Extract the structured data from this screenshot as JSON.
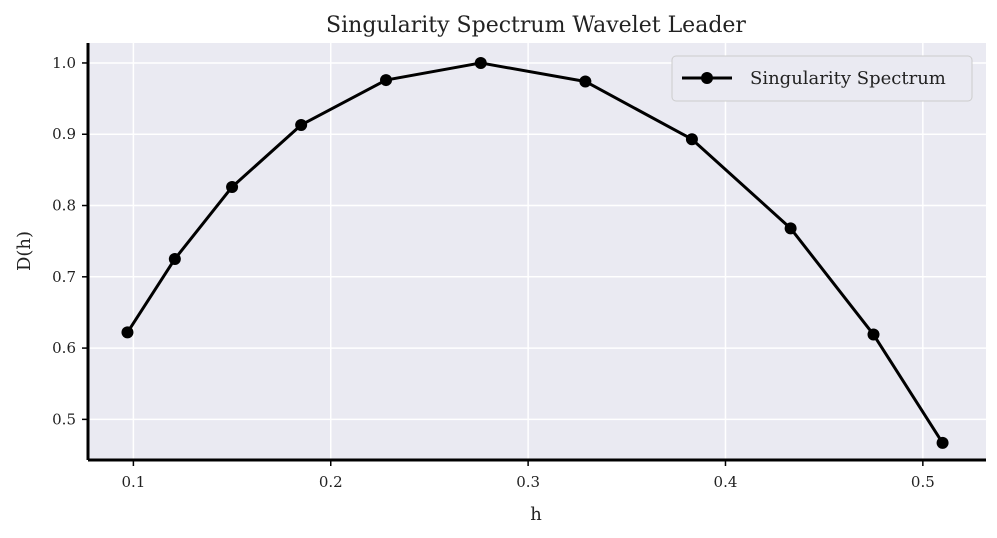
{
  "chart_data": {
    "type": "line",
    "title": "Singularity Spectrum Wavelet Leader",
    "xlabel": "h",
    "ylabel": "D(h)",
    "xlim": [
      0.077,
      0.532
    ],
    "ylim": [
      0.443,
      1.028
    ],
    "xticks": [
      0.1,
      0.2,
      0.3,
      0.4,
      0.5
    ],
    "xtick_labels": [
      "0.1",
      "0.2",
      "0.3",
      "0.4",
      "0.5"
    ],
    "yticks": [
      0.5,
      0.6,
      0.7,
      0.8,
      0.9,
      1.0
    ],
    "ytick_labels": [
      "0.5",
      "0.6",
      "0.7",
      "0.8",
      "0.9",
      "1.0"
    ],
    "grid": true,
    "legend": "top-right",
    "series": [
      {
        "name": "Singularity Spectrum",
        "color": "#000000",
        "marker": "circle",
        "x": [
          0.097,
          0.121,
          0.15,
          0.185,
          0.228,
          0.276,
          0.329,
          0.383,
          0.433,
          0.475,
          0.51
        ],
        "y": [
          0.622,
          0.725,
          0.826,
          0.913,
          0.976,
          1.0,
          0.974,
          0.893,
          0.768,
          0.619,
          0.467
        ]
      }
    ]
  },
  "colors": {
    "plot_background": "#eaeaf2",
    "grid": "#ffffff",
    "axis": "#000000",
    "line": "#000000"
  }
}
